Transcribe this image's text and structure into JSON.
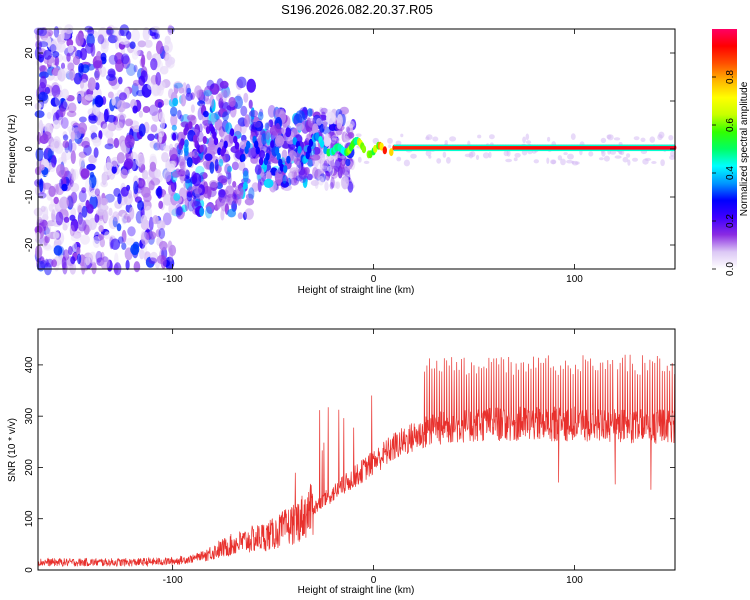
{
  "title": "S196.2026.082.20.37.R05",
  "chart_data": [
    {
      "type": "heatmap",
      "title": "S196.2026.082.20.37.R05",
      "xlabel": "Height of straight line (km)",
      "ylabel": "Frequency (Hz)",
      "xlim": [
        -167,
        150
      ],
      "ylim": [
        -25,
        25
      ],
      "xticks": [
        -100,
        0,
        100
      ],
      "yticks": [
        -20,
        -10,
        0,
        10,
        20
      ],
      "colorbar": {
        "label": "Normalized spectral amplitude",
        "range": [
          0,
          1
        ],
        "ticks": [
          0.0,
          0.2,
          0.4,
          0.6,
          0.8
        ],
        "colors": [
          "#ffffff",
          "#dcc8f5",
          "#8a2be2",
          "#4000ff",
          "#0000ff",
          "#0096ff",
          "#00ffff",
          "#00ff64",
          "#32ff00",
          "#c8ff00",
          "#ffff00",
          "#ffb400",
          "#ff5000",
          "#ff0000",
          "#ff0064"
        ]
      },
      "signal_track": {
        "description_points_x_km": [
          -100,
          -80,
          -60,
          -45,
          -35,
          -27,
          -20,
          -10,
          0,
          10,
          150
        ],
        "frequency_hz": [
          3,
          2,
          0,
          -2,
          0,
          2,
          -1,
          1,
          -0.5,
          0.3,
          0.3
        ],
        "amplitude": [
          0.2,
          0.2,
          0.3,
          0.3,
          0.35,
          0.4,
          0.5,
          0.6,
          0.7,
          0.9,
          0.95
        ]
      },
      "noise_region_km": [
        -167,
        -30
      ]
    },
    {
      "type": "line",
      "xlabel": "Height of straight line (km)",
      "ylabel": "SNR (10 * v/v)",
      "xlim": [
        -167,
        150
      ],
      "ylim": [
        0,
        470
      ],
      "xticks": [
        -100,
        0,
        100
      ],
      "yticks": [
        0,
        100,
        200,
        300,
        400
      ],
      "color": "#e8302c",
      "series": [
        {
          "name": "SNR",
          "trend_x_km": [
            -167,
            -120,
            -100,
            -90,
            -80,
            -70,
            -60,
            -50,
            -40,
            -30,
            -20,
            -10,
            0,
            10,
            20,
            30,
            40,
            60,
            80,
            100,
            120,
            140,
            150
          ],
          "trend_y": [
            15,
            15,
            17,
            22,
            35,
            50,
            60,
            70,
            90,
            120,
            150,
            180,
            210,
            240,
            260,
            275,
            280,
            285,
            285,
            285,
            280,
            280,
            280
          ],
          "spike_peak_y": 420
        }
      ]
    }
  ]
}
